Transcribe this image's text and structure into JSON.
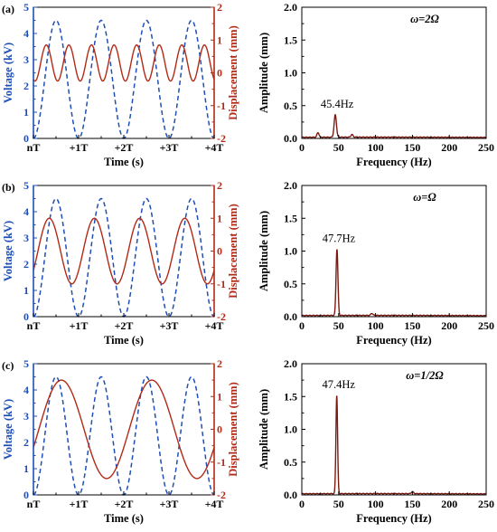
{
  "chart_data": [
    {
      "panel": "(a)",
      "type": "line",
      "xlabel": "Time (s)",
      "ylabel_left": "Voltage (kV)",
      "ylabel_right": "Displacement (mm)",
      "x_tick_labels": [
        "nT",
        "+1T",
        "+2T",
        "+3T",
        "+4T"
      ],
      "x_range": [
        0,
        4
      ],
      "ylim_left": [
        0,
        5
      ],
      "ylim_right": [
        -2,
        2
      ],
      "left_ticks": [
        "0",
        "1",
        "2",
        "3",
        "4",
        "5"
      ],
      "right_ticks": [
        "-2",
        "-1",
        "0",
        "1",
        "2"
      ],
      "grid": false,
      "colors": {
        "voltage": "#1f4fb4",
        "displacement": "#b22a16"
      },
      "series": [
        {
          "quantity": "voltage",
          "axis": "left",
          "style": "dashed",
          "shape": "sinusoid",
          "cycles_per_T": 1,
          "phase_cycles": 0.25,
          "offset": 2.25,
          "amplitude": 2.25,
          "y_unit": "kV"
        },
        {
          "quantity": "displacement",
          "axis": "right",
          "style": "solid",
          "shape": "sinusoid",
          "cycles_per_T": 2,
          "phase_cycles": 0.32,
          "offset": 0.3,
          "amplitude": 0.55,
          "y_unit": "mm"
        }
      ]
    },
    {
      "panel": "(a)",
      "type": "line",
      "annotation": "ω=2Ω",
      "xlabel": "Frequency (Hz)",
      "ylabel": "Amplitude (mm)",
      "xlim": [
        0,
        250
      ],
      "ylim": [
        0,
        2.0
      ],
      "x_ticks": [
        "0",
        "50",
        "100",
        "150",
        "200",
        "250"
      ],
      "y_ticks": [
        "0.0",
        "0.5",
        "1.0",
        "1.5",
        "2.0"
      ],
      "grid": false,
      "color": "#7a1b12",
      "peak_label": "45.4Hz",
      "peak": {
        "x": 45.4,
        "y": 0.36,
        "width": 2.2
      },
      "points": [
        {
          "x": 22,
          "y": 0.09
        },
        {
          "x": 68,
          "y": 0.06
        }
      ],
      "baseline": 0.02
    },
    {
      "panel": "(b)",
      "type": "line",
      "xlabel": "Time (s)",
      "ylabel_left": "Voltage (kV)",
      "ylabel_right": "Displacement (mm)",
      "x_tick_labels": [
        "nT",
        "+1T",
        "+2T",
        "+3T",
        "+4T"
      ],
      "x_range": [
        0,
        4
      ],
      "ylim_left": [
        0,
        5
      ],
      "ylim_right": [
        -2,
        2
      ],
      "left_ticks": [
        "0",
        "1",
        "2",
        "3",
        "4",
        "5"
      ],
      "right_ticks": [
        "-2",
        "-1",
        "0",
        "1",
        "2"
      ],
      "grid": false,
      "colors": {
        "voltage": "#1f4fb4",
        "displacement": "#b22a16"
      },
      "series": [
        {
          "quantity": "voltage",
          "axis": "left",
          "style": "dashed",
          "shape": "sinusoid",
          "cycles_per_T": 1,
          "phase_cycles": 0.25,
          "offset": 2.25,
          "amplitude": 2.25,
          "y_unit": "kV"
        },
        {
          "quantity": "displacement",
          "axis": "right",
          "style": "solid",
          "shape": "sinusoid",
          "cycles_per_T": 1,
          "phase_cycles": 0.1,
          "offset": 0,
          "amplitude": 1.0,
          "y_unit": "mm"
        }
      ]
    },
    {
      "panel": "(b)",
      "type": "line",
      "annotation": "ω=Ω",
      "xlabel": "Frequency (Hz)",
      "ylabel": "Amplitude (mm)",
      "xlim": [
        0,
        250
      ],
      "ylim": [
        0,
        2.0
      ],
      "x_ticks": [
        "0",
        "50",
        "100",
        "150",
        "200",
        "250"
      ],
      "y_ticks": [
        "0.0",
        "0.5",
        "1.0",
        "1.5",
        "2.0"
      ],
      "grid": false,
      "color": "#7a1b12",
      "peak_label": "47.7Hz",
      "peak": {
        "x": 47.7,
        "y": 1.03,
        "width": 1.8
      },
      "points": [
        {
          "x": 95,
          "y": 0.05
        }
      ],
      "baseline": 0.02
    },
    {
      "panel": "(c)",
      "type": "line",
      "xlabel": "Time (s)",
      "ylabel_left": "Voltage (kV)",
      "ylabel_right": "Displacement (mm)",
      "x_tick_labels": [
        "nT",
        "+1T",
        "+2T",
        "+3T",
        "+4T"
      ],
      "x_range": [
        0,
        4
      ],
      "ylim_left": [
        0,
        5
      ],
      "ylim_right": [
        -2,
        2
      ],
      "left_ticks": [
        "0",
        "1",
        "2",
        "3",
        "4",
        "5"
      ],
      "right_ticks": [
        "-2",
        "-1",
        "0",
        "1",
        "2"
      ],
      "grid": false,
      "colors": {
        "voltage": "#1f4fb4",
        "displacement": "#b22a16"
      },
      "series": [
        {
          "quantity": "voltage",
          "axis": "left",
          "style": "dashed",
          "shape": "sinusoid",
          "cycles_per_T": 1,
          "phase_cycles": 0.25,
          "offset": 2.25,
          "amplitude": 2.25,
          "y_unit": "kV"
        },
        {
          "quantity": "displacement",
          "axis": "right",
          "style": "solid",
          "shape": "sinusoid",
          "cycles_per_T": 0.5,
          "phase_cycles": 0.06,
          "offset": 0,
          "amplitude": 1.5,
          "y_unit": "mm"
        }
      ]
    },
    {
      "panel": "(c)",
      "type": "line",
      "annotation": "ω=1/2Ω",
      "xlabel": "Frequency (Hz)",
      "ylabel": "Amplitude (mm)",
      "xlim": [
        0,
        250
      ],
      "ylim": [
        0,
        2.0
      ],
      "x_ticks": [
        "0",
        "50",
        "100",
        "150",
        "200",
        "250"
      ],
      "y_ticks": [
        "0.0",
        "0.5",
        "1.0",
        "1.5",
        "2.0"
      ],
      "grid": false,
      "color": "#7a1b12",
      "peak_label": "47.4Hz",
      "peak": {
        "x": 47.4,
        "y": 1.52,
        "width": 1.6
      },
      "points": [
        {
          "x": 150,
          "y": 0.05
        }
      ],
      "baseline": 0.02
    }
  ]
}
